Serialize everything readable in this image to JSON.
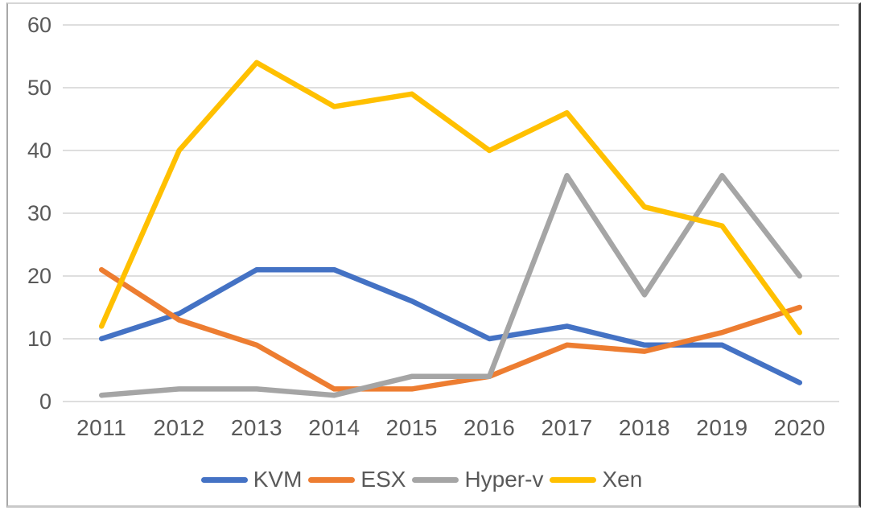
{
  "chart_data": {
    "type": "line",
    "title": "",
    "xlabel": "",
    "ylabel": "",
    "categories": [
      "2011",
      "2012",
      "2013",
      "2014",
      "2015",
      "2016",
      "2017",
      "2018",
      "2019",
      "2020"
    ],
    "series": [
      {
        "name": "KVM",
        "color": "#4472C4",
        "values": [
          10,
          14,
          21,
          21,
          16,
          10,
          12,
          9,
          9,
          3
        ]
      },
      {
        "name": "ESX",
        "color": "#ED7D31",
        "values": [
          21,
          13,
          9,
          2,
          2,
          4,
          9,
          8,
          11,
          15
        ]
      },
      {
        "name": "Hyper-v",
        "color": "#A5A5A5",
        "values": [
          1,
          2,
          2,
          1,
          4,
          4,
          36,
          17,
          36,
          20
        ]
      },
      {
        "name": "Xen",
        "color": "#FFC000",
        "values": [
          12,
          40,
          54,
          47,
          49,
          40,
          46,
          31,
          28,
          11
        ]
      }
    ],
    "ylim": [
      0,
      60
    ],
    "yticks": [
      0,
      10,
      20,
      30,
      40,
      50,
      60
    ],
    "grid": "horizontal",
    "gridline_color": "#D9D9D9",
    "axis_label_color": "#595959",
    "legend_position": "bottom"
  }
}
